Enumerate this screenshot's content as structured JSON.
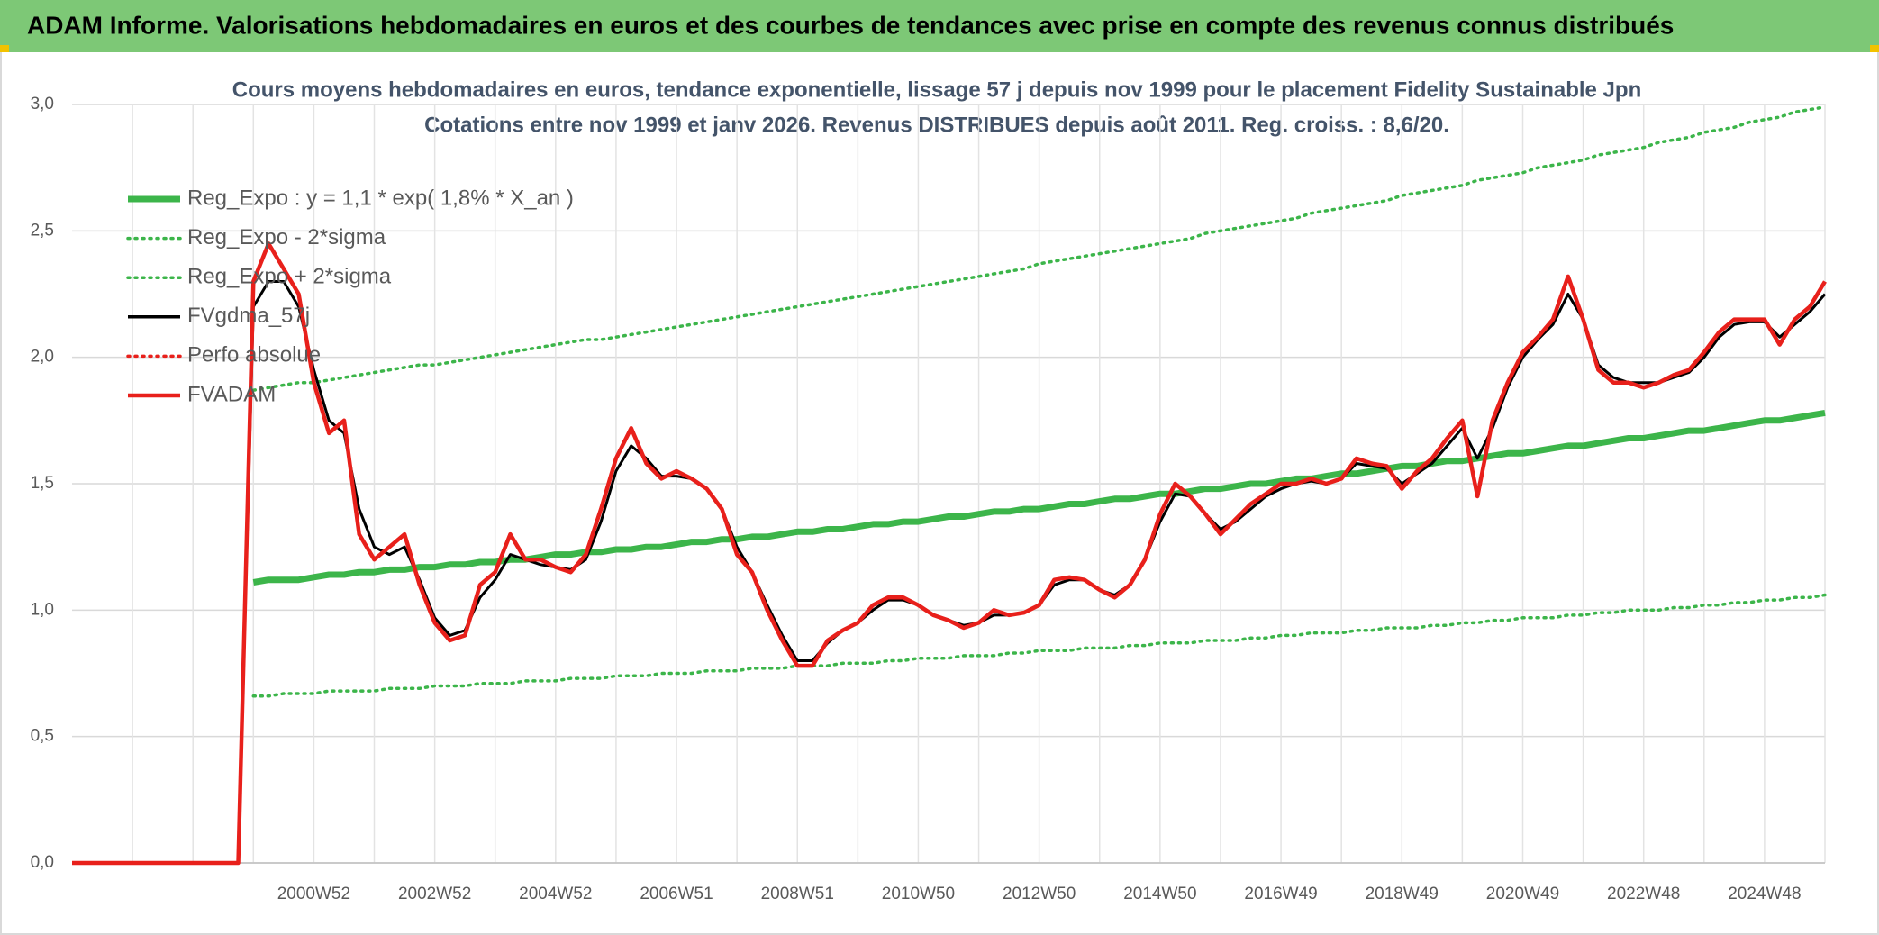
{
  "header": {
    "title": "ADAM Informe. Valorisations hebdomadaires en euros et des courbes de tendances avec prise en compte des revenus connus distribués"
  },
  "chart_data": {
    "type": "line",
    "title": "Cours moyens hebdomadaires en euros, tendance exponentielle, lissage 57 j depuis nov 1999 pour le placement Fidelity Sustainable Jpn",
    "subtitle": "Cotations entre nov 1999 et janv 2026. Revenus DISTRIBUES depuis août 2011. Reg. croiss. : 8,6/20.",
    "categories": [
      null,
      null,
      null,
      null,
      null,
      null,
      null,
      null,
      null,
      null,
      null,
      null,
      null,
      null,
      null,
      null,
      "2000W52",
      null,
      null,
      null,
      null,
      null,
      null,
      null,
      "2002W52",
      null,
      null,
      null,
      null,
      null,
      null,
      null,
      "2004W52",
      null,
      null,
      null,
      null,
      null,
      null,
      null,
      "2006W51",
      null,
      null,
      null,
      null,
      null,
      null,
      null,
      "2008W51",
      null,
      null,
      null,
      null,
      null,
      null,
      null,
      "2010W50",
      null,
      null,
      null,
      null,
      null,
      null,
      null,
      "2012W50",
      null,
      null,
      null,
      null,
      null,
      null,
      null,
      "2014W50",
      null,
      null,
      null,
      null,
      null,
      null,
      null,
      "2016W49",
      null,
      null,
      null,
      null,
      null,
      null,
      null,
      "2018W49",
      null,
      null,
      null,
      null,
      null,
      null,
      null,
      "2020W49",
      null,
      null,
      null,
      null,
      null,
      null,
      null,
      "2022W48",
      null,
      null,
      null,
      null,
      null,
      null,
      null,
      "2024W48",
      null,
      null,
      null,
      null
    ],
    "ylim": [
      0,
      3
    ],
    "yticks": [
      {
        "value": 0,
        "label": "0,0"
      },
      {
        "value": 0.5,
        "label": "0,5"
      },
      {
        "value": 1,
        "label": "1,0"
      },
      {
        "value": 1.5,
        "label": "1,5"
      },
      {
        "value": 2,
        "label": "2,0"
      },
      {
        "value": 2.5,
        "label": "2,5"
      },
      {
        "value": 3,
        "label": "3,0"
      }
    ],
    "grid": true,
    "legend": "top-left",
    "series": [
      {
        "name": "Reg_Expo : y = 1,1 * exp( 1,8% *  X_an )",
        "color": "#3cb54a",
        "width": 7,
        "dash": "solid",
        "values": [
          null,
          null,
          null,
          null,
          null,
          null,
          null,
          null,
          null,
          null,
          null,
          null,
          1.11,
          1.12,
          1.12,
          1.12,
          1.13,
          1.14,
          1.14,
          1.15,
          1.15,
          1.16,
          1.16,
          1.17,
          1.17,
          1.18,
          1.18,
          1.19,
          1.19,
          1.2,
          1.2,
          1.21,
          1.22,
          1.22,
          1.23,
          1.23,
          1.24,
          1.24,
          1.25,
          1.25,
          1.26,
          1.27,
          1.27,
          1.28,
          1.28,
          1.29,
          1.29,
          1.3,
          1.31,
          1.31,
          1.32,
          1.32,
          1.33,
          1.34,
          1.34,
          1.35,
          1.35,
          1.36,
          1.37,
          1.37,
          1.38,
          1.39,
          1.39,
          1.4,
          1.4,
          1.41,
          1.42,
          1.42,
          1.43,
          1.44,
          1.44,
          1.45,
          1.46,
          1.46,
          1.47,
          1.48,
          1.48,
          1.49,
          1.5,
          1.5,
          1.51,
          1.52,
          1.52,
          1.53,
          1.54,
          1.54,
          1.55,
          1.56,
          1.57,
          1.57,
          1.58,
          1.59,
          1.59,
          1.6,
          1.61,
          1.62,
          1.62,
          1.63,
          1.64,
          1.65,
          1.65,
          1.66,
          1.67,
          1.68,
          1.68,
          1.69,
          1.7,
          1.71,
          1.71,
          1.72,
          1.73,
          1.74,
          1.75,
          1.75,
          1.76,
          1.77,
          1.78
        ]
      },
      {
        "name": "Reg_Expo - 2*sigma",
        "color": "#3cb54a",
        "width": 3.5,
        "dash": "dotted",
        "values": [
          null,
          null,
          null,
          null,
          null,
          null,
          null,
          null,
          null,
          null,
          null,
          null,
          0.66,
          0.66,
          0.67,
          0.67,
          0.67,
          0.68,
          0.68,
          0.68,
          0.68,
          0.69,
          0.69,
          0.69,
          0.7,
          0.7,
          0.7,
          0.71,
          0.71,
          0.71,
          0.72,
          0.72,
          0.72,
          0.73,
          0.73,
          0.73,
          0.74,
          0.74,
          0.74,
          0.75,
          0.75,
          0.75,
          0.76,
          0.76,
          0.76,
          0.77,
          0.77,
          0.77,
          0.78,
          0.78,
          0.78,
          0.79,
          0.79,
          0.79,
          0.8,
          0.8,
          0.81,
          0.81,
          0.81,
          0.82,
          0.82,
          0.82,
          0.83,
          0.83,
          0.84,
          0.84,
          0.84,
          0.85,
          0.85,
          0.85,
          0.86,
          0.86,
          0.87,
          0.87,
          0.87,
          0.88,
          0.88,
          0.88,
          0.89,
          0.89,
          0.9,
          0.9,
          0.91,
          0.91,
          0.91,
          0.92,
          0.92,
          0.93,
          0.93,
          0.93,
          0.94,
          0.94,
          0.95,
          0.95,
          0.96,
          0.96,
          0.97,
          0.97,
          0.97,
          0.98,
          0.98,
          0.99,
          0.99,
          1.0,
          1.0,
          1.0,
          1.01,
          1.01,
          1.02,
          1.02,
          1.03,
          1.03,
          1.04,
          1.04,
          1.05,
          1.05,
          1.06
        ]
      },
      {
        "name": "Reg_Expo + 2*sigma",
        "color": "#3cb54a",
        "width": 3.5,
        "dash": "dotted",
        "values": [
          null,
          null,
          null,
          null,
          null,
          null,
          null,
          null,
          null,
          null,
          null,
          null,
          1.87,
          1.88,
          1.89,
          1.9,
          1.9,
          1.91,
          1.92,
          1.93,
          1.94,
          1.95,
          1.96,
          1.97,
          1.97,
          1.98,
          1.99,
          2.0,
          2.01,
          2.02,
          2.03,
          2.04,
          2.05,
          2.06,
          2.07,
          2.07,
          2.08,
          2.09,
          2.1,
          2.11,
          2.12,
          2.13,
          2.14,
          2.15,
          2.16,
          2.17,
          2.18,
          2.19,
          2.2,
          2.21,
          2.22,
          2.23,
          2.24,
          2.25,
          2.26,
          2.27,
          2.28,
          2.29,
          2.3,
          2.31,
          2.32,
          2.33,
          2.34,
          2.35,
          2.37,
          2.38,
          2.39,
          2.4,
          2.41,
          2.42,
          2.43,
          2.44,
          2.45,
          2.46,
          2.47,
          2.49,
          2.5,
          2.51,
          2.52,
          2.53,
          2.54,
          2.55,
          2.57,
          2.58,
          2.59,
          2.6,
          2.61,
          2.62,
          2.64,
          2.65,
          2.66,
          2.67,
          2.68,
          2.7,
          2.71,
          2.72,
          2.73,
          2.75,
          2.76,
          2.77,
          2.78,
          2.8,
          2.81,
          2.82,
          2.83,
          2.85,
          2.86,
          2.87,
          2.89,
          2.9,
          2.91,
          2.93,
          2.94,
          2.95,
          2.97,
          2.98,
          2.99
        ]
      },
      {
        "name": "FVgdma_57j",
        "color": "#000000",
        "width": 3,
        "dash": "solid",
        "values": [
          0,
          0,
          0,
          0,
          0,
          0,
          0,
          0,
          0,
          0,
          0,
          0,
          2.2,
          2.3,
          2.3,
          2.2,
          1.95,
          1.75,
          1.7,
          1.4,
          1.25,
          1.22,
          1.25,
          1.12,
          0.97,
          0.9,
          0.92,
          1.05,
          1.12,
          1.22,
          1.2,
          1.18,
          1.17,
          1.16,
          1.2,
          1.35,
          1.55,
          1.65,
          1.6,
          1.53,
          1.53,
          1.52,
          1.48,
          1.4,
          1.25,
          1.15,
          1.02,
          0.9,
          0.8,
          0.8,
          0.87,
          0.92,
          0.95,
          1.0,
          1.04,
          1.04,
          1.02,
          0.98,
          0.96,
          0.94,
          0.95,
          0.98,
          0.98,
          0.99,
          1.02,
          1.1,
          1.12,
          1.12,
          1.08,
          1.06,
          1.1,
          1.2,
          1.35,
          1.46,
          1.45,
          1.38,
          1.32,
          1.35,
          1.4,
          1.45,
          1.48,
          1.5,
          1.51,
          1.5,
          1.52,
          1.58,
          1.57,
          1.56,
          1.5,
          1.54,
          1.58,
          1.65,
          1.72,
          1.6,
          1.72,
          1.88,
          2.0,
          2.07,
          2.13,
          2.25,
          2.15,
          1.97,
          1.92,
          1.9,
          1.9,
          1.9,
          1.92,
          1.94,
          2.0,
          2.08,
          2.13,
          2.14,
          2.14,
          2.08,
          2.13,
          2.18,
          2.25
        ]
      },
      {
        "name": "Perfo absolue",
        "color": "#e8201b",
        "width": 2.5,
        "dash": "dotted"
      },
      {
        "name": "FVADAM",
        "color": "#e8201b",
        "width": 4.5,
        "dash": "solid",
        "values": [
          0,
          0,
          0,
          0,
          0,
          0,
          0,
          0,
          0,
          0,
          0,
          0,
          2.3,
          2.45,
          2.35,
          2.25,
          1.9,
          1.7,
          1.75,
          1.3,
          1.2,
          1.25,
          1.3,
          1.1,
          0.95,
          0.88,
          0.9,
          1.1,
          1.15,
          1.3,
          1.2,
          1.2,
          1.17,
          1.15,
          1.22,
          1.4,
          1.6,
          1.72,
          1.58,
          1.52,
          1.55,
          1.52,
          1.48,
          1.4,
          1.22,
          1.15,
          1.0,
          0.88,
          0.78,
          0.78,
          0.88,
          0.92,
          0.95,
          1.02,
          1.05,
          1.05,
          1.02,
          0.98,
          0.96,
          0.93,
          0.95,
          1.0,
          0.98,
          0.99,
          1.02,
          1.12,
          1.13,
          1.12,
          1.08,
          1.05,
          1.1,
          1.2,
          1.38,
          1.5,
          1.45,
          1.38,
          1.3,
          1.36,
          1.42,
          1.46,
          1.5,
          1.5,
          1.52,
          1.5,
          1.52,
          1.6,
          1.58,
          1.57,
          1.48,
          1.55,
          1.6,
          1.68,
          1.75,
          1.45,
          1.75,
          1.9,
          2.02,
          2.08,
          2.15,
          2.32,
          2.15,
          1.95,
          1.9,
          1.9,
          1.88,
          1.9,
          1.93,
          1.95,
          2.02,
          2.1,
          2.15,
          2.15,
          2.15,
          2.05,
          2.15,
          2.2,
          2.3
        ]
      }
    ]
  }
}
